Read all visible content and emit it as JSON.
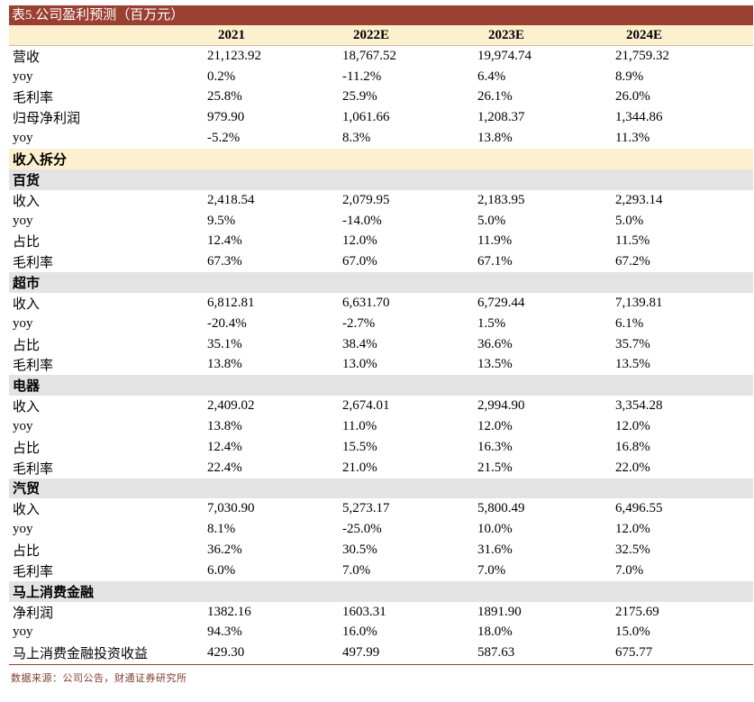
{
  "title": "表5.公司盈利预测（百万元）",
  "headers": [
    "",
    "2021",
    "2022E",
    "2023E",
    "2024E"
  ],
  "rows": [
    {
      "type": "data",
      "cells": [
        "营收",
        "21,123.92",
        "18,767.52",
        "19,974.74",
        "21,759.32"
      ]
    },
    {
      "type": "data",
      "cells": [
        "yoy",
        "0.2%",
        "-11.2%",
        "6.4%",
        "8.9%"
      ]
    },
    {
      "type": "data",
      "cells": [
        "毛利率",
        "25.8%",
        "25.9%",
        "26.1%",
        "26.0%"
      ]
    },
    {
      "type": "data",
      "cells": [
        "归母净利润",
        "979.90",
        "1,061.66",
        "1,208.37",
        "1,344.86"
      ]
    },
    {
      "type": "data",
      "cells": [
        "yoy",
        "-5.2%",
        "8.3%",
        "13.8%",
        "11.3%"
      ]
    },
    {
      "type": "section",
      "cells": [
        "收入拆分",
        "",
        "",
        "",
        ""
      ]
    },
    {
      "type": "group",
      "cells": [
        "百货",
        "",
        "",
        "",
        ""
      ]
    },
    {
      "type": "data",
      "cells": [
        "收入",
        "2,418.54",
        "2,079.95",
        "2,183.95",
        "2,293.14"
      ]
    },
    {
      "type": "data",
      "cells": [
        "yoy",
        "9.5%",
        "-14.0%",
        "5.0%",
        "5.0%"
      ]
    },
    {
      "type": "data",
      "cells": [
        "占比",
        "12.4%",
        "12.0%",
        "11.9%",
        "11.5%"
      ]
    },
    {
      "type": "data",
      "cells": [
        "毛利率",
        "67.3%",
        "67.0%",
        "67.1%",
        "67.2%"
      ]
    },
    {
      "type": "group",
      "cells": [
        "超市",
        "",
        "",
        "",
        ""
      ]
    },
    {
      "type": "data",
      "cells": [
        "收入",
        "6,812.81",
        "6,631.70",
        "6,729.44",
        "7,139.81"
      ]
    },
    {
      "type": "data",
      "cells": [
        "yoy",
        "-20.4%",
        "-2.7%",
        "1.5%",
        "6.1%"
      ]
    },
    {
      "type": "data",
      "cells": [
        "占比",
        "35.1%",
        "38.4%",
        "36.6%",
        "35.7%"
      ]
    },
    {
      "type": "data",
      "cells": [
        "毛利率",
        "13.8%",
        "13.0%",
        "13.5%",
        "13.5%"
      ]
    },
    {
      "type": "group",
      "cells": [
        "电器",
        "",
        "",
        "",
        ""
      ]
    },
    {
      "type": "data",
      "cells": [
        "收入",
        "2,409.02",
        "2,674.01",
        "2,994.90",
        "3,354.28"
      ]
    },
    {
      "type": "data",
      "cells": [
        "yoy",
        "13.8%",
        "11.0%",
        "12.0%",
        "12.0%"
      ]
    },
    {
      "type": "data",
      "cells": [
        "占比",
        "12.4%",
        "15.5%",
        "16.3%",
        "16.8%"
      ]
    },
    {
      "type": "data",
      "cells": [
        "毛利率",
        "22.4%",
        "21.0%",
        "21.5%",
        "22.0%"
      ]
    },
    {
      "type": "group",
      "cells": [
        "汽贸",
        "",
        "",
        "",
        ""
      ]
    },
    {
      "type": "data",
      "cells": [
        "收入",
        "7,030.90",
        "5,273.17",
        "5,800.49",
        "6,496.55"
      ]
    },
    {
      "type": "data",
      "cells": [
        "yoy",
        "8.1%",
        "-25.0%",
        "10.0%",
        "12.0%"
      ]
    },
    {
      "type": "data",
      "cells": [
        "占比",
        "36.2%",
        "30.5%",
        "31.6%",
        "32.5%"
      ]
    },
    {
      "type": "data",
      "cells": [
        "毛利率",
        "6.0%",
        "7.0%",
        "7.0%",
        "7.0%"
      ]
    },
    {
      "type": "group",
      "cells": [
        "马上消费金融",
        "",
        "",
        "",
        ""
      ]
    },
    {
      "type": "data",
      "cells": [
        "净利润",
        "1382.16",
        "1603.31",
        "1891.90",
        "2175.69"
      ]
    },
    {
      "type": "data",
      "cells": [
        "yoy",
        "94.3%",
        "16.0%",
        "18.0%",
        "15.0%"
      ]
    },
    {
      "type": "data",
      "cells": [
        "马上消费金融投资收益",
        "429.30",
        "497.99",
        "587.63",
        "675.77"
      ]
    }
  ],
  "source": "数据来源：公司公告，财通证券研究所"
}
